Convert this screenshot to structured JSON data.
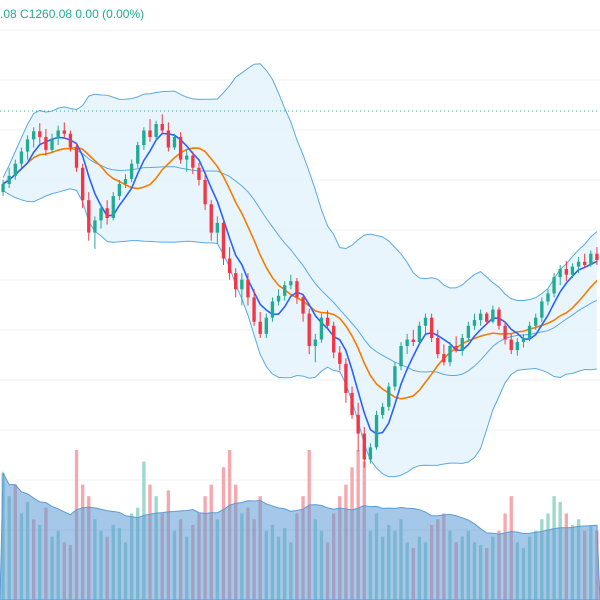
{
  "legend": {
    "high_partial": ".08",
    "close": "C1260.08",
    "change": "0.00 (0.00%)"
  },
  "colors": {
    "up": "#22ab94",
    "down": "#f23645",
    "up_volume": "#9fd8cc",
    "down_volume": "#f5a8ae",
    "bollinger_line": "#5aa9e6",
    "bollinger_fill": "#e3f2fb",
    "ma_fast": "#2962ff",
    "ma_slow": "#f57c00",
    "volume_ma_area": "#5b9bd5",
    "price_line": "#22ab94",
    "grid": "#eef0f3"
  },
  "chart_data": {
    "type": "candlestick",
    "price_line": 1260.08,
    "candles": [
      [
        1160,
        1175,
        1155,
        1170
      ],
      [
        1170,
        1190,
        1165,
        1180
      ],
      [
        1180,
        1200,
        1175,
        1195
      ],
      [
        1195,
        1215,
        1190,
        1210
      ],
      [
        1210,
        1230,
        1200,
        1225
      ],
      [
        1225,
        1240,
        1215,
        1235
      ],
      [
        1235,
        1245,
        1220,
        1228
      ],
      [
        1228,
        1238,
        1205,
        1212
      ],
      [
        1212,
        1232,
        1208,
        1226
      ],
      [
        1226,
        1242,
        1218,
        1236
      ],
      [
        1236,
        1246,
        1226,
        1232
      ],
      [
        1232,
        1236,
        1210,
        1215
      ],
      [
        1215,
        1220,
        1185,
        1190
      ],
      [
        1190,
        1195,
        1140,
        1150
      ],
      [
        1150,
        1160,
        1100,
        1110
      ],
      [
        1110,
        1130,
        1090,
        1125
      ],
      [
        1125,
        1145,
        1115,
        1140
      ],
      [
        1140,
        1150,
        1120,
        1128
      ],
      [
        1128,
        1160,
        1125,
        1155
      ],
      [
        1155,
        1175,
        1150,
        1170
      ],
      [
        1170,
        1182,
        1165,
        1176
      ],
      [
        1176,
        1200,
        1172,
        1195
      ],
      [
        1195,
        1222,
        1190,
        1218
      ],
      [
        1218,
        1240,
        1212,
        1236
      ],
      [
        1236,
        1250,
        1222,
        1228
      ],
      [
        1228,
        1248,
        1224,
        1244
      ],
      [
        1244,
        1256,
        1232,
        1236
      ],
      [
        1236,
        1246,
        1210,
        1215
      ],
      [
        1215,
        1232,
        1212,
        1228
      ],
      [
        1228,
        1234,
        1195,
        1200
      ],
      [
        1200,
        1212,
        1185,
        1205
      ],
      [
        1205,
        1210,
        1182,
        1190
      ],
      [
        1190,
        1196,
        1168,
        1175
      ],
      [
        1175,
        1182,
        1138,
        1145
      ],
      [
        1145,
        1150,
        1100,
        1110
      ],
      [
        1110,
        1130,
        1096,
        1122
      ],
      [
        1122,
        1128,
        1070,
        1078
      ],
      [
        1078,
        1092,
        1052,
        1060
      ],
      [
        1060,
        1066,
        1030,
        1040
      ],
      [
        1040,
        1060,
        1020,
        1052
      ],
      [
        1052,
        1060,
        1020,
        1030
      ],
      [
        1030,
        1040,
        995,
        1000
      ],
      [
        1000,
        1012,
        980,
        985
      ],
      [
        985,
        1010,
        980,
        1005
      ],
      [
        1005,
        1030,
        1000,
        1025
      ],
      [
        1025,
        1040,
        1020,
        1032
      ],
      [
        1032,
        1050,
        1026,
        1045
      ],
      [
        1045,
        1058,
        1040,
        1050
      ],
      [
        1050,
        1054,
        1022,
        1030
      ],
      [
        1030,
        1034,
        1000,
        1010
      ],
      [
        1010,
        1016,
        960,
        970
      ],
      [
        970,
        985,
        950,
        978
      ],
      [
        978,
        1010,
        974,
        1005
      ],
      [
        1005,
        1014,
        990,
        995
      ],
      [
        995,
        1000,
        955,
        962
      ],
      [
        962,
        970,
        940,
        948
      ],
      [
        948,
        955,
        900,
        912
      ],
      [
        912,
        920,
        880,
        885
      ],
      [
        885,
        900,
        840,
        862
      ],
      [
        862,
        870,
        820,
        830
      ],
      [
        830,
        850,
        825,
        845
      ],
      [
        845,
        890,
        842,
        885
      ],
      [
        885,
        900,
        880,
        895
      ],
      [
        895,
        925,
        890,
        920
      ],
      [
        920,
        950,
        915,
        945
      ],
      [
        945,
        975,
        940,
        970
      ],
      [
        970,
        985,
        960,
        978
      ],
      [
        978,
        990,
        970,
        975
      ],
      [
        975,
        1000,
        972,
        995
      ],
      [
        995,
        1010,
        985,
        1005
      ],
      [
        1005,
        1010,
        975,
        980
      ],
      [
        980,
        990,
        955,
        960
      ],
      [
        960,
        972,
        946,
        950
      ],
      [
        950,
        975,
        945,
        970
      ],
      [
        970,
        982,
        962,
        964
      ],
      [
        964,
        985,
        958,
        980
      ],
      [
        980,
        1000,
        975,
        995
      ],
      [
        995,
        1010,
        990,
        1002
      ],
      [
        1002,
        1015,
        995,
        1010
      ],
      [
        1010,
        1012,
        996,
        1000
      ],
      [
        1000,
        1020,
        998,
        1015
      ],
      [
        1015,
        1018,
        990,
        995
      ],
      [
        995,
        1000,
        972,
        978
      ],
      [
        978,
        985,
        960,
        965
      ],
      [
        965,
        980,
        958,
        975
      ],
      [
        975,
        985,
        968,
        980
      ],
      [
        980,
        1000,
        976,
        995
      ],
      [
        995,
        1010,
        990,
        1005
      ],
      [
        1005,
        1030,
        1000,
        1025
      ],
      [
        1025,
        1040,
        1020,
        1035
      ],
      [
        1035,
        1060,
        1030,
        1055
      ],
      [
        1055,
        1070,
        1045,
        1065
      ],
      [
        1065,
        1075,
        1050,
        1058
      ],
      [
        1058,
        1072,
        1054,
        1068
      ],
      [
        1068,
        1080,
        1060,
        1074
      ],
      [
        1074,
        1084,
        1066,
        1070
      ],
      [
        1070,
        1088,
        1068,
        1084
      ],
      [
        1084,
        1092,
        1070,
        1076
      ]
    ],
    "volume": [
      [
        220,
        "up"
      ],
      [
        180,
        "up"
      ],
      [
        200,
        "down"
      ],
      [
        150,
        "up"
      ],
      [
        170,
        "up"
      ],
      [
        140,
        "down"
      ],
      [
        130,
        "up"
      ],
      [
        160,
        "down"
      ],
      [
        110,
        "up"
      ],
      [
        120,
        "up"
      ],
      [
        100,
        "down"
      ],
      [
        95,
        "down"
      ],
      [
        260,
        "down"
      ],
      [
        200,
        "down"
      ],
      [
        180,
        "down"
      ],
      [
        140,
        "up"
      ],
      [
        120,
        "up"
      ],
      [
        110,
        "down"
      ],
      [
        130,
        "up"
      ],
      [
        125,
        "up"
      ],
      [
        100,
        "up"
      ],
      [
        150,
        "up"
      ],
      [
        160,
        "up"
      ],
      [
        240,
        "up"
      ],
      [
        200,
        "down"
      ],
      [
        180,
        "up"
      ],
      [
        150,
        "down"
      ],
      [
        190,
        "down"
      ],
      [
        120,
        "up"
      ],
      [
        140,
        "down"
      ],
      [
        110,
        "up"
      ],
      [
        130,
        "down"
      ],
      [
        150,
        "down"
      ],
      [
        180,
        "down"
      ],
      [
        200,
        "down"
      ],
      [
        140,
        "up"
      ],
      [
        230,
        "down"
      ],
      [
        260,
        "down"
      ],
      [
        200,
        "down"
      ],
      [
        150,
        "up"
      ],
      [
        160,
        "down"
      ],
      [
        140,
        "down"
      ],
      [
        180,
        "down"
      ],
      [
        120,
        "up"
      ],
      [
        130,
        "up"
      ],
      [
        110,
        "up"
      ],
      [
        125,
        "up"
      ],
      [
        100,
        "up"
      ],
      [
        150,
        "down"
      ],
      [
        180,
        "down"
      ],
      [
        260,
        "down"
      ],
      [
        140,
        "up"
      ],
      [
        120,
        "up"
      ],
      [
        100,
        "down"
      ],
      [
        150,
        "down"
      ],
      [
        180,
        "down"
      ],
      [
        200,
        "down"
      ],
      [
        230,
        "down"
      ],
      [
        260,
        "down"
      ],
      [
        240,
        "down"
      ],
      [
        120,
        "up"
      ],
      [
        150,
        "up"
      ],
      [
        110,
        "up"
      ],
      [
        130,
        "up"
      ],
      [
        120,
        "up"
      ],
      [
        140,
        "up"
      ],
      [
        100,
        "up"
      ],
      [
        90,
        "down"
      ],
      [
        110,
        "up"
      ],
      [
        100,
        "up"
      ],
      [
        130,
        "down"
      ],
      [
        140,
        "down"
      ],
      [
        150,
        "down"
      ],
      [
        120,
        "up"
      ],
      [
        100,
        "down"
      ],
      [
        110,
        "up"
      ],
      [
        120,
        "up"
      ],
      [
        100,
        "up"
      ],
      [
        95,
        "up"
      ],
      [
        90,
        "down"
      ],
      [
        110,
        "up"
      ],
      [
        120,
        "down"
      ],
      [
        150,
        "down"
      ],
      [
        180,
        "down"
      ],
      [
        100,
        "up"
      ],
      [
        90,
        "up"
      ],
      [
        110,
        "up"
      ],
      [
        120,
        "up"
      ],
      [
        140,
        "up"
      ],
      [
        150,
        "up"
      ],
      [
        180,
        "up"
      ],
      [
        170,
        "up"
      ],
      [
        150,
        "down"
      ],
      [
        130,
        "up"
      ],
      [
        140,
        "up"
      ],
      [
        120,
        "down"
      ],
      [
        130,
        "up"
      ],
      [
        120,
        "down"
      ]
    ]
  }
}
